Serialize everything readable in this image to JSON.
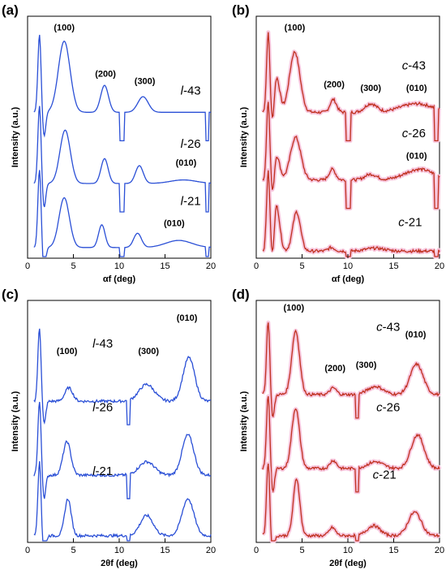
{
  "chart_data": [
    {
      "type": "line",
      "panel": "(a)",
      "xlabel": "αf (deg)",
      "ylabel": "Intensity (a.u.)",
      "xlim": [
        0,
        20
      ],
      "xticks": [
        "0",
        "5",
        "10",
        "15",
        "20"
      ],
      "color": "#2a4fd6",
      "highlight": false,
      "series": [
        {
          "name": "l-43",
          "name_prefix": "l",
          "name_suffix": "-43",
          "offset": 2.0,
          "peaks": [
            [
              4.0,
              1.0,
              0.9
            ],
            [
              8.4,
              0.38,
              0.6
            ],
            [
              12.6,
              0.22,
              0.8
            ]
          ],
          "base": 0.05
        },
        {
          "name": "l-26",
          "name_prefix": "l",
          "name_suffix": "-26",
          "offset": 1.0,
          "peaks": [
            [
              4.1,
              0.75,
              0.8
            ],
            [
              8.4,
              0.35,
              0.55
            ],
            [
              12.2,
              0.25,
              0.6
            ],
            [
              17.0,
              0.05,
              2.0
            ]
          ],
          "base": 0.05
        },
        {
          "name": "l-21",
          "name_prefix": "l",
          "name_suffix": "-21",
          "offset": 0.1,
          "peaks": [
            [
              4.0,
              0.7,
              0.8
            ],
            [
              8.1,
              0.32,
              0.5
            ],
            [
              12.0,
              0.2,
              0.6
            ],
            [
              16.5,
              0.1,
              2.0
            ]
          ],
          "base": 0.05
        }
      ],
      "peak_labels": [
        {
          "text": "(100)",
          "x": 4.0,
          "y": 3.2
        },
        {
          "text": "(200)",
          "x": 8.5,
          "y": 2.55
        },
        {
          "text": "(300)",
          "x": 12.8,
          "y": 2.45
        },
        {
          "text": "(010)",
          "x": 17.3,
          "y": 1.3
        },
        {
          "text": "(010)",
          "x": 16.0,
          "y": 0.45
        }
      ],
      "sample_labels": [
        {
          "prefix": "l",
          "suffix": "-43",
          "x": 17.8,
          "y": 2.3
        },
        {
          "prefix": "l",
          "suffix": "-26",
          "x": 17.8,
          "y": 1.55
        },
        {
          "prefix": "l",
          "suffix": "-21",
          "x": 17.8,
          "y": 0.75
        }
      ],
      "gaps": [
        [
          10.0,
          10.6
        ],
        [
          19.4,
          19.8
        ]
      ],
      "ymax": 3.4
    },
    {
      "type": "line",
      "panel": "(b)",
      "xlabel": "αf (deg)",
      "ylabel": "Intensity (a.u.)",
      "xlim": [
        0,
        20
      ],
      "xticks": [
        "0",
        "5",
        "10",
        "15",
        "20"
      ],
      "color": "#c0301f",
      "highlight": true,
      "series": [
        {
          "name": "c-43",
          "name_prefix": "c",
          "name_suffix": "-43",
          "offset": 2.0,
          "peaks": [
            [
              2.2,
              0.5,
              0.5
            ],
            [
              4.2,
              0.85,
              0.8
            ],
            [
              8.4,
              0.18,
              0.5
            ],
            [
              12.5,
              0.12,
              0.9
            ],
            [
              17.5,
              0.12,
              2.5
            ]
          ],
          "base": 0.05
        },
        {
          "name": "c-26",
          "name_prefix": "c",
          "name_suffix": "-26",
          "offset": 1.05,
          "peaks": [
            [
              2.2,
              0.35,
              0.5
            ],
            [
              4.3,
              0.6,
              0.8
            ],
            [
              8.3,
              0.15,
              0.5
            ],
            [
              12.5,
              0.08,
              0.9
            ],
            [
              17.8,
              0.15,
              2.2
            ]
          ],
          "base": 0.05
        },
        {
          "name": "c-21",
          "name_prefix": "c",
          "name_suffix": "-21",
          "offset": 0.05,
          "peaks": [
            [
              2.2,
              0.65,
              0.5
            ],
            [
              4.4,
              0.55,
              0.6
            ],
            [
              8.2,
              0.05,
              0.5
            ],
            [
              13.0,
              0.04,
              1.5
            ]
          ],
          "base": 0.05
        }
      ],
      "peak_labels": [
        {
          "text": "(100)",
          "x": 4.2,
          "y": 3.2
        },
        {
          "text": "(200)",
          "x": 8.5,
          "y": 2.4
        },
        {
          "text": "(300)",
          "x": 12.5,
          "y": 2.35
        },
        {
          "text": "(010)",
          "x": 17.5,
          "y": 2.35
        },
        {
          "text": "(010)",
          "x": 17.5,
          "y": 1.4
        }
      ],
      "sample_labels": [
        {
          "prefix": "c",
          "suffix": "-43",
          "x": 17.2,
          "y": 2.65
        },
        {
          "prefix": "c",
          "suffix": "-26",
          "x": 17.2,
          "y": 1.7
        },
        {
          "prefix": "c",
          "suffix": "-21",
          "x": 16.8,
          "y": 0.45
        }
      ],
      "gaps": [
        [
          9.8,
          10.3
        ],
        [
          19.4,
          19.9
        ]
      ],
      "ymax": 3.4
    },
    {
      "type": "line",
      "panel": "(c)",
      "xlabel": "2θf (deg)",
      "ylabel": "Intensity (a.u.)",
      "xlim": [
        0,
        20
      ],
      "xticks": [
        "0",
        "5",
        "10",
        "15",
        "20"
      ],
      "color": "#2a4fd6",
      "highlight": false,
      "series": [
        {
          "name": "l-43",
          "name_prefix": "l",
          "name_suffix": "-43",
          "offset": 2.1,
          "peaks": [
            [
              4.5,
              0.2,
              0.6
            ],
            [
              13.0,
              0.25,
              1.2
            ],
            [
              17.6,
              0.65,
              0.9
            ]
          ],
          "base": 0.0
        },
        {
          "name": "l-26",
          "name_prefix": "l",
          "name_suffix": "-26",
          "offset": 1.0,
          "peaks": [
            [
              4.3,
              0.5,
              0.6
            ],
            [
              13.0,
              0.2,
              1.2
            ],
            [
              17.5,
              0.6,
              0.9
            ]
          ],
          "base": 0.0
        },
        {
          "name": "l-21",
          "name_prefix": "l",
          "name_suffix": "-21",
          "offset": 0.1,
          "peaks": [
            [
              4.4,
              0.55,
              0.5
            ],
            [
              13.0,
              0.3,
              1.0
            ],
            [
              17.5,
              0.55,
              0.9
            ]
          ],
          "base": 0.0
        }
      ],
      "peak_labels": [
        {
          "text": "(100)",
          "x": 4.3,
          "y": 2.8
        },
        {
          "text": "(300)",
          "x": 13.2,
          "y": 2.8
        },
        {
          "text": "(010)",
          "x": 17.4,
          "y": 3.3
        }
      ],
      "sample_labels": [
        {
          "prefix": "l",
          "suffix": "-43",
          "x": 8.2,
          "y": 2.9
        },
        {
          "prefix": "l",
          "suffix": "-26",
          "x": 8.2,
          "y": 1.95
        },
        {
          "prefix": "l",
          "suffix": "-21",
          "x": 8.2,
          "y": 1.0
        }
      ],
      "gaps": [
        [
          10.8,
          11.2
        ]
      ],
      "ymax": 3.6
    },
    {
      "type": "line",
      "panel": "(d)",
      "xlabel": "2θf (deg)",
      "ylabel": "Intensity (a.u.)",
      "xlim": [
        0,
        20
      ],
      "xticks": [
        "0",
        "5",
        "10",
        "15",
        "20"
      ],
      "color": "#c0301f",
      "highlight": true,
      "series": [
        {
          "name": "c-43",
          "name_prefix": "c",
          "name_suffix": "-43",
          "offset": 2.2,
          "peaks": [
            [
              4.3,
              0.95,
              0.6
            ],
            [
              8.4,
              0.1,
              0.5
            ],
            [
              13.0,
              0.12,
              1.2
            ],
            [
              17.5,
              0.45,
              1.0
            ]
          ],
          "base": 0.0
        },
        {
          "name": "c-26",
          "name_prefix": "c",
          "name_suffix": "-26",
          "offset": 1.1,
          "peaks": [
            [
              4.3,
              0.9,
              0.6
            ],
            [
              8.4,
              0.12,
              0.5
            ],
            [
              13.0,
              0.1,
              1.2
            ],
            [
              17.6,
              0.5,
              1.0
            ]
          ],
          "base": 0.0
        },
        {
          "name": "c-21",
          "name_prefix": "c",
          "name_suffix": "-21",
          "offset": 0.1,
          "peaks": [
            [
              4.4,
              0.85,
              0.5
            ],
            [
              8.3,
              0.12,
              0.5
            ],
            [
              12.8,
              0.15,
              1.0
            ],
            [
              17.3,
              0.35,
              1.0
            ]
          ],
          "base": 0.0
        }
      ],
      "peak_labels": [
        {
          "text": "(100)",
          "x": 4.1,
          "y": 3.45
        },
        {
          "text": "(200)",
          "x": 8.6,
          "y": 2.55
        },
        {
          "text": "(300)",
          "x": 12.0,
          "y": 2.6
        },
        {
          "text": "(010)",
          "x": 17.4,
          "y": 3.05
        }
      ],
      "sample_labels": [
        {
          "prefix": "c",
          "suffix": "-43",
          "x": 14.4,
          "y": 3.15
        },
        {
          "prefix": "c",
          "suffix": "-26",
          "x": 14.4,
          "y": 1.95
        },
        {
          "prefix": "c",
          "suffix": "-21",
          "x": 14.0,
          "y": 0.95
        }
      ],
      "gaps": [
        [
          10.8,
          11.2
        ]
      ],
      "ymax": 3.6
    }
  ]
}
